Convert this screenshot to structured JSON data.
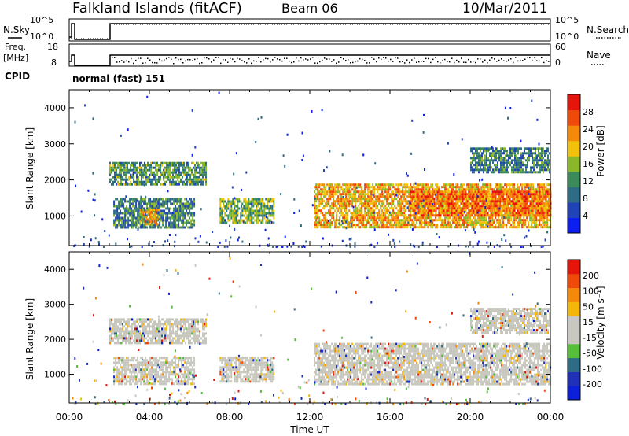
{
  "header": {
    "station": "Falkland Islands (fitACF)",
    "beam": "Beam 06",
    "date": "10/Mar/2011"
  },
  "strip_labels": {
    "nsky": "N.Sky",
    "nsearch": "N.Search",
    "freq_line1": "Freq.",
    "freq_line2": "[MHz]",
    "nave": "Nave",
    "cpid": "CPID",
    "cpid_value": "normal (fast) 151"
  },
  "strip_ticks": {
    "noise_left": [
      "10^5",
      "10^0"
    ],
    "noise_right": [
      "10^5",
      "10^0"
    ],
    "freq_left": [
      "18",
      "8"
    ],
    "nave_right": [
      "60",
      "0"
    ]
  },
  "colors": {
    "power_scale": [
      "#0b20f0",
      "#2044b8",
      "#2e6c86",
      "#3a8a5a",
      "#8ab828",
      "#f2c20a",
      "#f58a0a",
      "#f04a0a",
      "#e6140a"
    ],
    "velocity_scale": [
      "#e6140a",
      "#f04a0a",
      "#f58a0a",
      "#f5b60a",
      "#c8c8c0",
      "#c8c8c0",
      "#55bf3a",
      "#2e6c86",
      "#2030b8",
      "#0b20d8"
    ]
  },
  "chart_data": [
    {
      "type": "heatmap",
      "name": "power",
      "ylabel": "Slant Range [km]",
      "ylim": [
        180,
        4500
      ],
      "yticks": [
        "1000",
        "2000",
        "3000",
        "4000"
      ],
      "colorbar_label": "Power [dB]",
      "colorbar_ticks": [
        "4",
        "8",
        "12",
        "16",
        "20",
        "24",
        "28"
      ],
      "regions": [
        {
          "t0": 2.0,
          "t1": 6.8,
          "r0": 1900,
          "r1": 2500,
          "level": 12
        },
        {
          "t0": 2.2,
          "t1": 6.2,
          "r0": 700,
          "r1": 1500,
          "level": 10
        },
        {
          "t0": 3.5,
          "t1": 4.5,
          "r0": 800,
          "r1": 1200,
          "level": 20
        },
        {
          "t0": 7.5,
          "t1": 10.2,
          "r0": 800,
          "r1": 1500,
          "level": 14
        },
        {
          "t0": 12.2,
          "t1": 24.0,
          "r0": 700,
          "r1": 1900,
          "level": 22
        },
        {
          "t0": 17.0,
          "t1": 24.0,
          "r0": 1000,
          "r1": 1700,
          "level": 26
        },
        {
          "t0": 20.0,
          "t1": 24.0,
          "r0": 2200,
          "r1": 2900,
          "level": 10
        }
      ]
    },
    {
      "type": "heatmap",
      "name": "velocity",
      "ylabel": "Slant Range [km]",
      "xlabel": "Time UT",
      "ylim": [
        180,
        4500
      ],
      "yticks": [
        "1000",
        "2000",
        "3000",
        "4000"
      ],
      "xticks": [
        "00:00",
        "04:00",
        "08:00",
        "12:00",
        "16:00",
        "20:00",
        "00:00"
      ],
      "xlim": [
        0,
        24
      ],
      "colorbar_label": "Velocity [m s⁻¹]",
      "colorbar_ticks": [
        "200",
        "100",
        "50",
        "15",
        "-15",
        "-50",
        "-100",
        "-200"
      ],
      "regions": [
        {
          "t0": 2.0,
          "t1": 6.8,
          "r0": 1900,
          "r1": 2600,
          "level": 0
        },
        {
          "t0": 2.2,
          "t1": 6.2,
          "r0": 700,
          "r1": 1500,
          "level": 0
        },
        {
          "t0": 7.5,
          "t1": 10.2,
          "r0": 800,
          "r1": 1500,
          "level": 0
        },
        {
          "t0": 12.2,
          "t1": 24.0,
          "r0": 700,
          "r1": 1900,
          "level": 0
        },
        {
          "t0": 20.0,
          "t1": 24.0,
          "r0": 2200,
          "r1": 2900,
          "level": 0
        }
      ]
    }
  ]
}
